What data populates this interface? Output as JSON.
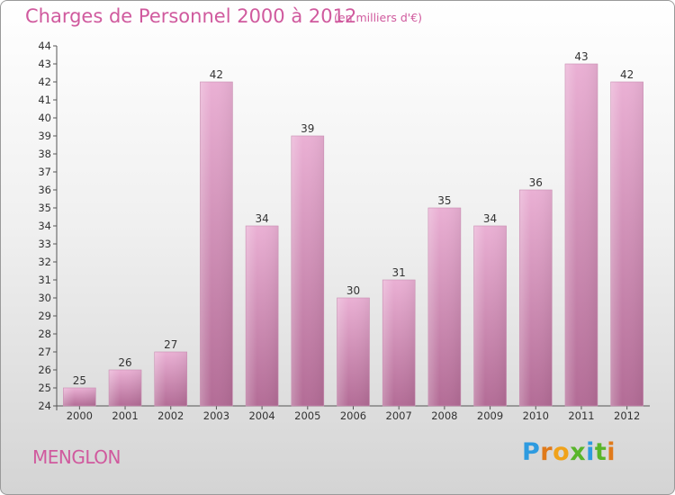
{
  "header": {
    "title": "Charges de Personnel 2000 à 2012",
    "subtitle": "(en milliers d'€)"
  },
  "footer": {
    "commune": "MENGLON",
    "logo": {
      "letters": [
        "P",
        "r",
        "o",
        "x",
        "i",
        "t",
        "i"
      ],
      "colors": [
        "#2e9be0",
        "#e07a1a",
        "#f0a21a",
        "#58b52a",
        "#2e9be0",
        "#58b52a",
        "#e07a1a"
      ]
    }
  },
  "colors": {
    "accent": "#d05a9e",
    "bar_light": "#eab0d4",
    "bar_dark": "#b36c96",
    "axis": "#555555"
  },
  "chart_data": {
    "type": "bar",
    "title": "Charges de Personnel 2000 à 2012",
    "subtitle": "(en milliers d'€)",
    "categories": [
      "2000",
      "2001",
      "2002",
      "2003",
      "2004",
      "2005",
      "2006",
      "2007",
      "2008",
      "2009",
      "2010",
      "2011",
      "2012"
    ],
    "values": [
      25,
      26,
      27,
      42,
      34,
      39,
      30,
      31,
      35,
      34,
      36,
      43,
      42
    ],
    "ylim": [
      24,
      44
    ],
    "yticks": [
      24,
      25,
      26,
      27,
      28,
      29,
      30,
      31,
      32,
      33,
      34,
      35,
      36,
      37,
      38,
      39,
      40,
      41,
      42,
      43,
      44
    ],
    "grid": false,
    "data_labels": true
  }
}
